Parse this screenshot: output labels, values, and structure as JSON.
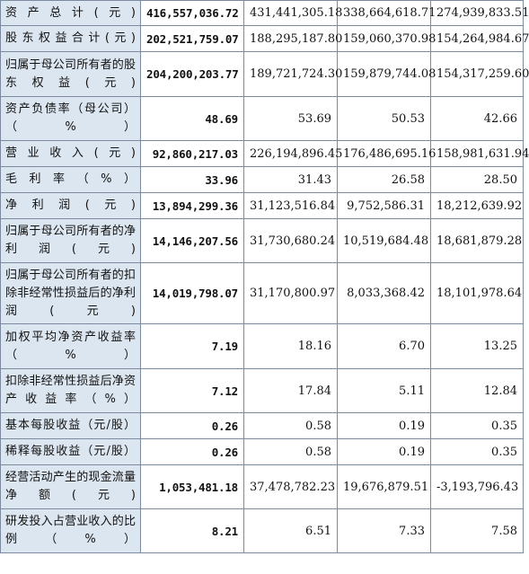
{
  "rows": [
    {
      "label": "资产总计(元)",
      "values": [
        "416,557,036.72",
        "431,441,305.18",
        "338,664,618.71",
        "274,939,833.51"
      ]
    },
    {
      "label": "股东权益合计(元)",
      "values": [
        "202,521,759.07",
        "188,295,187.80",
        "159,060,370.98",
        "154,264,984.67"
      ]
    },
    {
      "label": "归属于母公司所有者的股东权益(元)",
      "values": [
        "204,200,203.77",
        "189,721,724.30",
        "159,879,744.08",
        "154,317,259.60"
      ]
    },
    {
      "label": "资产负债率（母公司）（%）",
      "values": [
        "48.69",
        "53.69",
        "50.53",
        "42.66"
      ]
    },
    {
      "label": "营业收入(元)",
      "values": [
        "92,860,217.03",
        "226,194,896.45",
        "176,486,695.16",
        "158,981,631.94"
      ]
    },
    {
      "label": "毛利率（%）",
      "values": [
        "33.96",
        "31.43",
        "26.58",
        "28.50"
      ]
    },
    {
      "label": "净利润(元)",
      "values": [
        "13,894,299.36",
        "31,123,516.84",
        "9,752,586.31",
        "18,212,639.92"
      ]
    },
    {
      "label": "归属于母公司所有者的净利润(元)",
      "values": [
        "14,146,207.56",
        "31,730,680.24",
        "10,519,684.48",
        "18,681,879.28"
      ]
    },
    {
      "label": "归属于母公司所有者的扣除非经常性损益后的净利润(元)",
      "values": [
        "14,019,798.07",
        "31,170,800.97",
        "8,033,368.42",
        "18,101,978.64"
      ]
    },
    {
      "label": "加权平均净资产收益率（%）",
      "values": [
        "7.19",
        "18.16",
        "6.70",
        "13.25"
      ]
    },
    {
      "label": "扣除非经常性损益后净资产收益率（%）",
      "values": [
        "7.12",
        "17.84",
        "5.11",
        "12.84"
      ]
    },
    {
      "label": "基本每股收益（元/股）",
      "values": [
        "0.26",
        "0.58",
        "0.19",
        "0.35"
      ]
    },
    {
      "label": "稀释每股收益（元/股）",
      "values": [
        "0.26",
        "0.58",
        "0.19",
        "0.35"
      ]
    },
    {
      "label": "经营活动产生的现金流量净额(元)",
      "values": [
        "1,053,481.18",
        "37,478,782.23",
        "19,676,879.51",
        "-3,193,796.43"
      ]
    },
    {
      "label": "研发投入占营业收入的比例（%）",
      "values": [
        "8.21",
        "6.51",
        "7.33",
        "7.58"
      ]
    }
  ]
}
